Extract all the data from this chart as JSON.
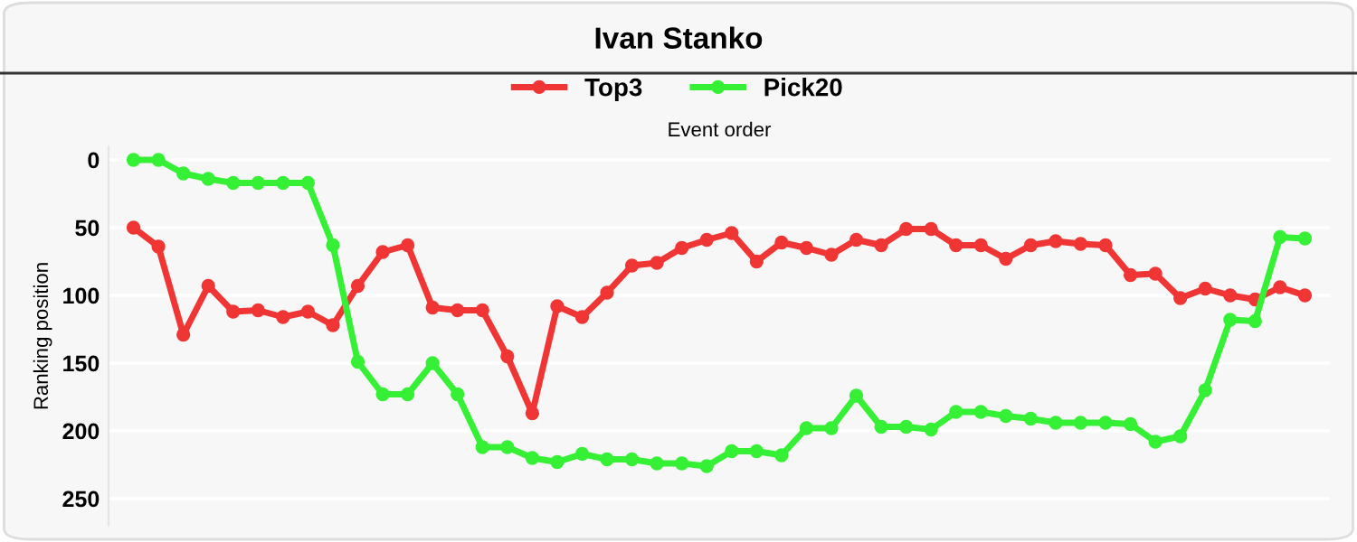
{
  "chart_data": {
    "type": "line",
    "title": "Ivan Stanko",
    "xlabel": "Event order",
    "ylabel": "Ranking position",
    "categories": [
      null,
      null,
      null,
      null,
      null,
      null,
      null,
      null,
      null,
      null,
      null,
      null,
      null,
      null,
      null,
      null,
      null,
      null,
      null,
      null,
      null,
      null,
      null,
      null,
      null,
      null,
      null,
      null,
      null,
      null,
      null,
      null,
      null,
      null,
      null,
      null,
      null,
      null,
      null,
      null,
      null,
      null,
      null,
      null,
      null,
      null,
      null,
      null
    ],
    "series": [
      {
        "name": "Top3",
        "color": "#f03535",
        "values": [
          50,
          64,
          129,
          93,
          112,
          111,
          116,
          112,
          122,
          93,
          68,
          63,
          109,
          111,
          111,
          145,
          187,
          108,
          116,
          98,
          78,
          76,
          65,
          59,
          54,
          75,
          61,
          65,
          70,
          59,
          63,
          51,
          51,
          63,
          63,
          73,
          63,
          60,
          62,
          63,
          85,
          84,
          102,
          95,
          100,
          103,
          94,
          100
        ]
      },
      {
        "name": "Pick20",
        "color": "#35f035",
        "values": [
          0,
          0,
          10,
          14,
          17,
          17,
          17,
          17,
          63,
          149,
          173,
          173,
          150,
          173,
          212,
          212,
          220,
          223,
          217,
          221,
          221,
          224,
          224,
          226,
          215,
          215,
          218,
          198,
          198,
          174,
          197,
          197,
          199,
          186,
          186,
          189,
          191,
          194,
          194,
          194,
          195,
          208,
          204,
          170,
          118,
          119,
          57,
          58
        ]
      }
    ],
    "ylim": [
      270,
      -10
    ],
    "yticks": [
      0,
      50,
      100,
      150,
      200,
      250
    ],
    "grid": "y",
    "legend": "top",
    "marker": "circle",
    "line_style": "solid"
  }
}
